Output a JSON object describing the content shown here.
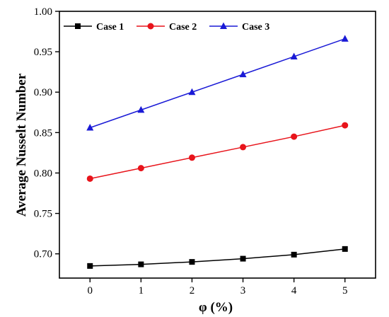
{
  "chart_data": {
    "type": "line",
    "title": "",
    "xlabel": "φ (%)",
    "ylabel": "Average Nusselt Number",
    "x": [
      0,
      1,
      2,
      3,
      4,
      5
    ],
    "xticks": [
      "0",
      "1",
      "2",
      "3",
      "4",
      "5"
    ],
    "xlim": [
      -0.6,
      5.6
    ],
    "yticks": [
      "0.70",
      "0.75",
      "0.80",
      "0.85",
      "0.90",
      "0.95",
      "1.00"
    ],
    "ylim": [
      0.67,
      1.0
    ],
    "grid": false,
    "legend_placement": "top-left",
    "series": [
      {
        "name": "Case 1",
        "color": "#000000",
        "marker": "square",
        "values": [
          0.685,
          0.687,
          0.69,
          0.694,
          0.699,
          0.706
        ]
      },
      {
        "name": "Case 2",
        "color": "#e8141b",
        "marker": "circle",
        "values": [
          0.793,
          0.806,
          0.819,
          0.832,
          0.845,
          0.859
        ]
      },
      {
        "name": "Case 3",
        "color": "#1a1ad6",
        "marker": "triangle",
        "values": [
          0.856,
          0.878,
          0.9,
          0.922,
          0.944,
          0.966
        ]
      }
    ]
  }
}
